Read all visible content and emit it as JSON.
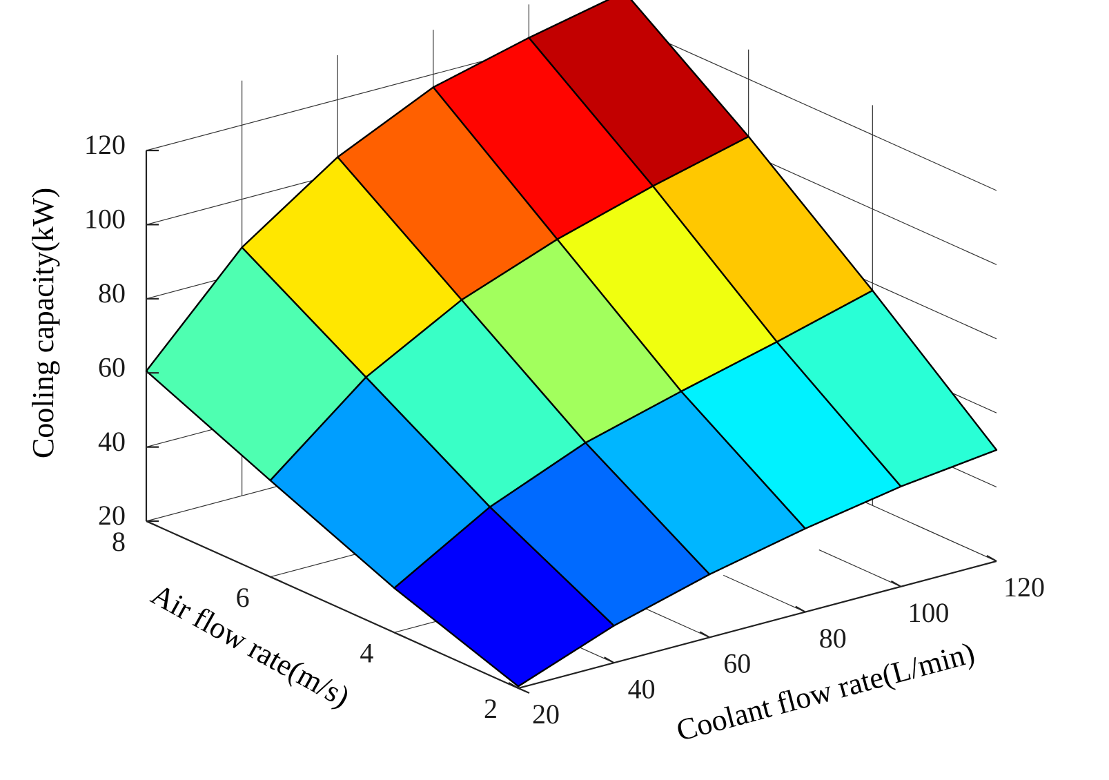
{
  "chart_data": {
    "type": "surface3d",
    "x": {
      "label": "Coolant flow rate(L/min)",
      "ticks": [
        20,
        40,
        60,
        80,
        100,
        120
      ],
      "range": [
        20,
        120
      ]
    },
    "y": {
      "label": "Air flow rate(m/s)",
      "ticks": [
        2,
        4,
        6,
        8
      ],
      "range": [
        2,
        8
      ]
    },
    "z": {
      "label": "Cooling capacity(kW)",
      "ticks": [
        20,
        40,
        60,
        80,
        100,
        120
      ],
      "range": [
        20,
        120
      ]
    },
    "grid": true,
    "colormap": "jet",
    "coolant_flow_grid": [
      20,
      40,
      60,
      80,
      100,
      120
    ],
    "air_flow_grid": [
      2,
      4,
      6,
      8
    ],
    "cooling_capacity": [
      [
        20.5,
        30.0,
        37.0,
        42.5,
        47.0,
        50.0
      ],
      [
        32.0,
        47.0,
        57.5,
        64.5,
        71.0,
        78.0
      ],
      [
        46.0,
        67.0,
        81.0,
        90.5,
        98.0,
        104.5
      ],
      [
        60.5,
        87.0,
        104.5,
        116.5,
        123.0,
        128.5
      ]
    ]
  }
}
